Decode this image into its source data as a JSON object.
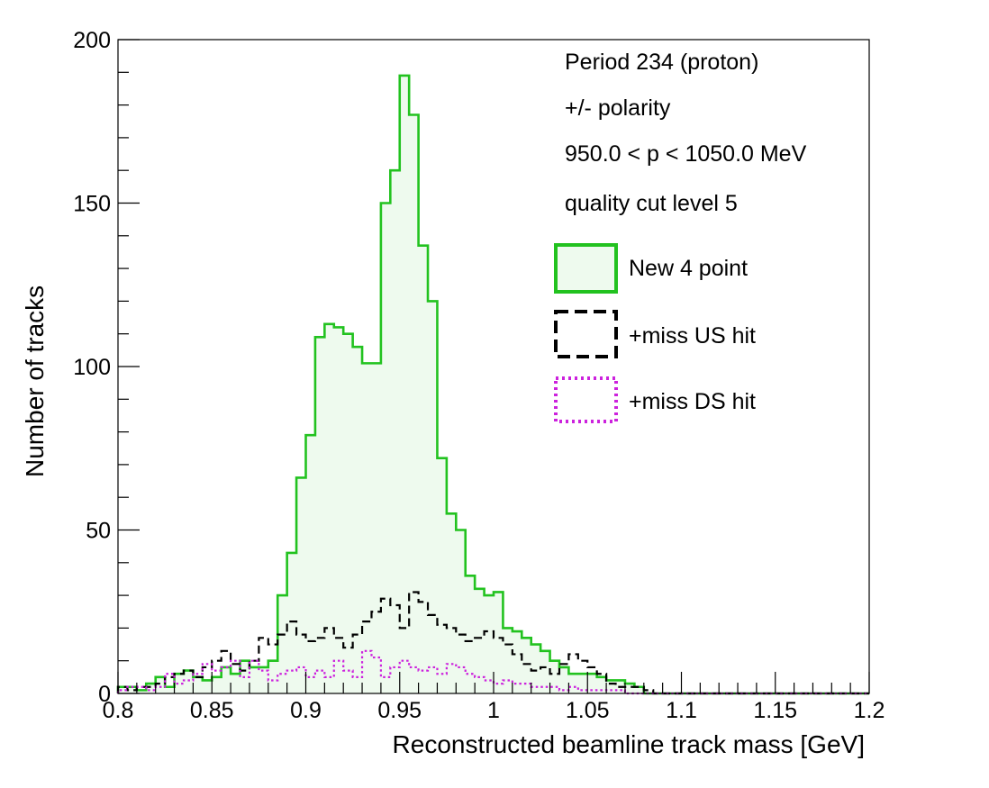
{
  "chart_data": {
    "type": "histogram",
    "xlabel": "Reconstructed beamline track mass [GeV]",
    "ylabel": "Number of tracks",
    "xlim": [
      0.8,
      1.2
    ],
    "ylim": [
      0,
      200
    ],
    "bin_width": 0.005,
    "x_ticks": [
      "0.8",
      "0.85",
      "0.9",
      "0.95",
      "1",
      "1.05",
      "1.1",
      "1.15",
      "1.2"
    ],
    "y_ticks": [
      "0",
      "50",
      "100",
      "150",
      "200"
    ],
    "info_lines": [
      "Period 234 (proton)",
      "+/- polarity",
      "950.0 < p < 1050.0 MeV",
      "quality cut level 5"
    ],
    "legend_position": "upper-right",
    "series": [
      {
        "name": "New 4 point",
        "color": "#22c21f",
        "fill": "#eefaee",
        "style": "solid-filled",
        "values": [
          2,
          2,
          1,
          3,
          5,
          2,
          6,
          7,
          5,
          4,
          5,
          8,
          6,
          10,
          8,
          8,
          10,
          30,
          43,
          66,
          79,
          109,
          113,
          112,
          110,
          106,
          101,
          101,
          150,
          160,
          189,
          177,
          137,
          120,
          72,
          55,
          50,
          36,
          32,
          30,
          31,
          20,
          19,
          17,
          15,
          13,
          10,
          8,
          6,
          6,
          6,
          5,
          4,
          4,
          3,
          2,
          0,
          0,
          0,
          0,
          0,
          0,
          0,
          0,
          0,
          0,
          0,
          0,
          0,
          0,
          0,
          0,
          0,
          0,
          0,
          0,
          0,
          0,
          0,
          0
        ]
      },
      {
        "name": "+miss US hit",
        "color": "#000000",
        "style": "dashed",
        "values": [
          2,
          1,
          2,
          2,
          3,
          5,
          6,
          7,
          5,
          8,
          10,
          13,
          9,
          7,
          10,
          17,
          15,
          18,
          22,
          18,
          16,
          17,
          20,
          17,
          14,
          18,
          22,
          25,
          29,
          27,
          20,
          31,
          28,
          24,
          21,
          20,
          18,
          16,
          17,
          19,
          17,
          15,
          12,
          9,
          7,
          8,
          6,
          9,
          12,
          10,
          8,
          6,
          3,
          2,
          2,
          2,
          1,
          0,
          0,
          0,
          0,
          0,
          0,
          0,
          0,
          0,
          0,
          0,
          0,
          0,
          0,
          0,
          0,
          0,
          0,
          0,
          0,
          0,
          0,
          0
        ]
      },
      {
        "name": "+miss DS hit",
        "color": "#cc22dd",
        "style": "dotted",
        "values": [
          1,
          2,
          2,
          1,
          2,
          6,
          3,
          4,
          6,
          9,
          7,
          8,
          10,
          5,
          10,
          7,
          4,
          6,
          7,
          8,
          5,
          7,
          5,
          10,
          7,
          5,
          13,
          11,
          5,
          8,
          10,
          8,
          7,
          8,
          6,
          9,
          8,
          6,
          5,
          4,
          3,
          4,
          3,
          3,
          2,
          2,
          2,
          1,
          2,
          1,
          1,
          1,
          1,
          1,
          0,
          0,
          0,
          0,
          0,
          0,
          0,
          0,
          0,
          0,
          0,
          0,
          0,
          0,
          0,
          0,
          0,
          0,
          0,
          0,
          0,
          0,
          0,
          0,
          0,
          0
        ]
      }
    ]
  }
}
